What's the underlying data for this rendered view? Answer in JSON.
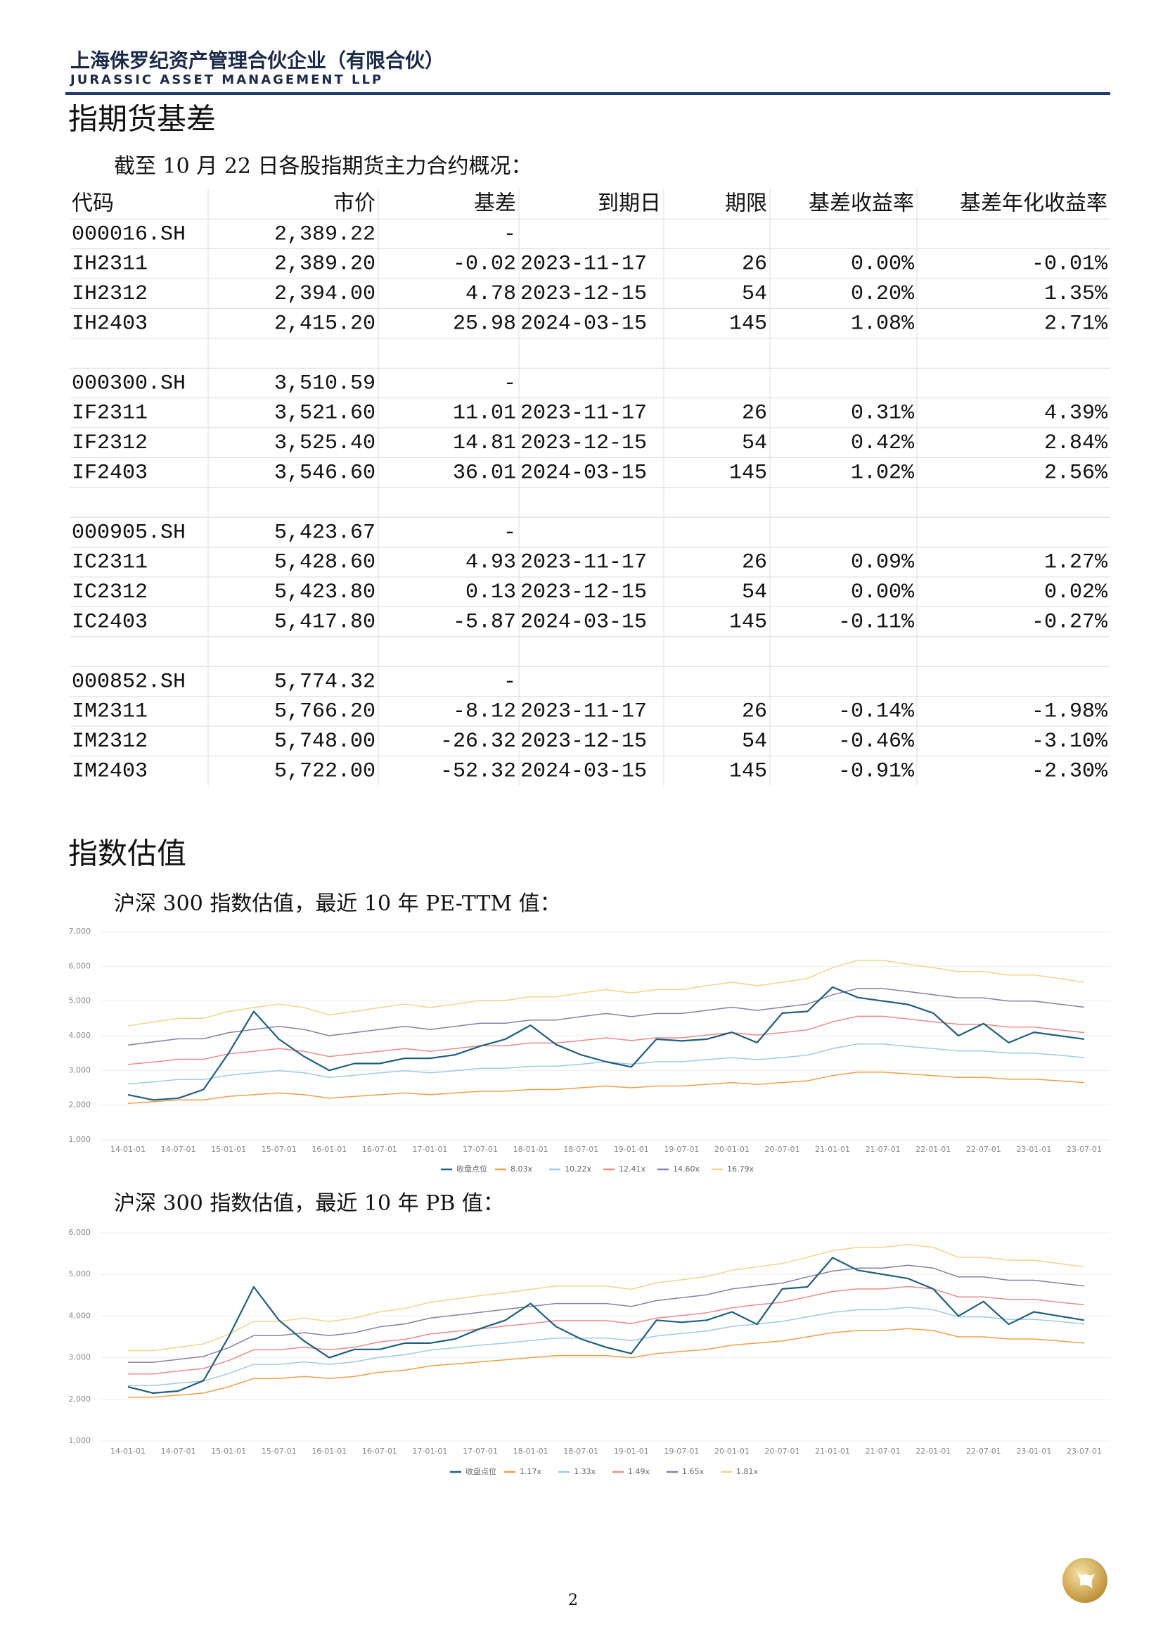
{
  "header": {
    "title_cn": "上海侏罗纪资产管理合伙企业（有限合伙）",
    "title_en": "JURASSIC ASSET MANAGEMENT LLP"
  },
  "section1": {
    "heading": "指期货基差",
    "intro": "截至 10 月 22 日各股指期货主力合约概况："
  },
  "table": {
    "columns": [
      "代码",
      "市价",
      "基差",
      "到期日",
      "期限",
      "基差收益率",
      "基差年化收益率"
    ],
    "rows": [
      [
        "000016.SH",
        "2,389.22",
        "-"
      ],
      [
        "IH2311",
        "2,389.20",
        "-0.02",
        "2023-11-17",
        "26",
        "0.00%",
        "-0.01%"
      ],
      [
        "IH2312",
        "2,394.00",
        "4.78",
        "2023-12-15",
        "54",
        "0.20%",
        "1.35%"
      ],
      [
        "IH2403",
        "2,415.20",
        "25.98",
        "2024-03-15",
        "145",
        "1.08%",
        "2.71%"
      ],
      [],
      [
        "000300.SH",
        "3,510.59",
        "-"
      ],
      [
        "IF2311",
        "3,521.60",
        "11.01",
        "2023-11-17",
        "26",
        "0.31%",
        "4.39%"
      ],
      [
        "IF2312",
        "3,525.40",
        "14.81",
        "2023-12-15",
        "54",
        "0.42%",
        "2.84%"
      ],
      [
        "IF2403",
        "3,546.60",
        "36.01",
        "2024-03-15",
        "145",
        "1.02%",
        "2.56%"
      ],
      [],
      [
        "000905.SH",
        "5,423.67",
        "-"
      ],
      [
        "IC2311",
        "5,428.60",
        "4.93",
        "2023-11-17",
        "26",
        "0.09%",
        "1.27%"
      ],
      [
        "IC2312",
        "5,423.80",
        "0.13",
        "2023-12-15",
        "54",
        "0.00%",
        "0.02%"
      ],
      [
        "IC2403",
        "5,417.80",
        "-5.87",
        "2024-03-15",
        "145",
        "-0.11%",
        "-0.27%"
      ],
      [],
      [
        "000852.SH",
        "5,774.32",
        "-"
      ],
      [
        "IM2311",
        "5,766.20",
        "-8.12",
        "2023-11-17",
        "26",
        "-0.14%",
        "-1.98%"
      ],
      [
        "IM2312",
        "5,748.00",
        "-26.32",
        "2023-12-15",
        "54",
        "-0.46%",
        "-3.10%"
      ],
      [
        "IM2403",
        "5,722.00",
        "-52.32",
        "2024-03-15",
        "145",
        "-0.91%",
        "-2.30%"
      ]
    ]
  },
  "section2": {
    "heading": "指数估值",
    "captions": [
      "沪深 300 指数估值，最近 10 年 PE-TTM 值：",
      "沪深 300 指数估值，最近 10 年 PB 值："
    ]
  },
  "chart_data": [
    {
      "type": "line",
      "categories": [
        "14-01-01",
        null,
        "14-07-01",
        null,
        "15-01-01",
        null,
        "15-07-01",
        null,
        "16-01-01",
        null,
        "16-07-01",
        null,
        "17-01-01",
        null,
        "17-07-01",
        null,
        "18-01-01",
        null,
        "18-07-01",
        null,
        "19-01-01",
        null,
        "19-07-01",
        null,
        "20-01-01",
        null,
        "20-07-01",
        null,
        "21-01-01",
        null,
        "21-07-01",
        null,
        "22-01-01",
        null,
        "22-07-01",
        null,
        "23-01-01",
        null,
        "23-07-01"
      ],
      "ylim": [
        1000,
        7000
      ],
      "yticks": [
        {
          "value": 1000,
          "label": "1,000"
        },
        {
          "value": 2000,
          "label": "2,000"
        },
        {
          "value": 3000,
          "label": "3,000"
        },
        {
          "value": 4000,
          "label": "4,000"
        },
        {
          "value": 5000,
          "label": "5,000"
        },
        {
          "value": 6000,
          "label": "6,000"
        },
        {
          "value": 7000,
          "label": "7,000"
        }
      ],
      "grid": true,
      "legend": "bottom",
      "series": [
        {
          "name": "收盘点位",
          "color": "#1f5f7f",
          "values": [
            2300,
            2150,
            2200,
            2450,
            3500,
            4700,
            3900,
            3400,
            3000,
            3200,
            3200,
            3350,
            3350,
            3450,
            3700,
            3900,
            4300,
            3750,
            3450,
            3250,
            3100,
            3900,
            3850,
            3900,
            4100,
            3800,
            4650,
            4700,
            5400,
            5100,
            5000,
            4900,
            4650,
            4000,
            4350,
            3800,
            4100,
            4000,
            3900
          ]
        },
        {
          "name": "8.03x",
          "color": "#f0a04b",
          "values": [
            2050,
            2100,
            2150,
            2150,
            2250,
            2300,
            2350,
            2300,
            2200,
            2250,
            2300,
            2350,
            2300,
            2350,
            2400,
            2400,
            2450,
            2450,
            2500,
            2550,
            2500,
            2550,
            2550,
            2600,
            2650,
            2600,
            2650,
            2700,
            2850,
            2950,
            2950,
            2900,
            2850,
            2800,
            2800,
            2750,
            2750,
            2700,
            2650
          ]
        },
        {
          "name": "10.22x",
          "color": "#9fcbe3",
          "values": [
            2610,
            2670,
            2740,
            2740,
            2860,
            2930,
            2990,
            2930,
            2800,
            2860,
            2930,
            2990,
            2930,
            2990,
            3060,
            3060,
            3120,
            3120,
            3180,
            3250,
            3180,
            3250,
            3250,
            3310,
            3370,
            3310,
            3370,
            3440,
            3630,
            3760,
            3760,
            3690,
            3630,
            3560,
            3560,
            3500,
            3500,
            3440,
            3370
          ]
        },
        {
          "name": "12.41x",
          "color": "#f08a8a",
          "values": [
            3170,
            3240,
            3320,
            3320,
            3480,
            3550,
            3630,
            3550,
            3400,
            3480,
            3550,
            3630,
            3550,
            3630,
            3710,
            3710,
            3790,
            3790,
            3860,
            3940,
            3860,
            3940,
            3940,
            4020,
            4090,
            4020,
            4090,
            4170,
            4400,
            4560,
            4560,
            4480,
            4400,
            4330,
            4330,
            4250,
            4250,
            4170,
            4090
          ]
        },
        {
          "name": "14.60x",
          "color": "#8a7fa8",
          "values": [
            3730,
            3820,
            3910,
            3910,
            4090,
            4180,
            4270,
            4180,
            4000,
            4090,
            4180,
            4270,
            4180,
            4270,
            4360,
            4360,
            4450,
            4450,
            4550,
            4640,
            4550,
            4640,
            4640,
            4730,
            4820,
            4730,
            4820,
            4910,
            5180,
            5360,
            5360,
            5270,
            5180,
            5090,
            5090,
            5000,
            5000,
            4910,
            4820
          ]
        },
        {
          "name": "16.79x",
          "color": "#f3d58a",
          "values": [
            4290,
            4390,
            4500,
            4500,
            4700,
            4810,
            4910,
            4810,
            4600,
            4700,
            4810,
            4910,
            4810,
            4910,
            5020,
            5020,
            5120,
            5120,
            5230,
            5330,
            5230,
            5330,
            5330,
            5440,
            5540,
            5440,
            5540,
            5650,
            5960,
            6170,
            6170,
            6060,
            5960,
            5850,
            5850,
            5750,
            5750,
            5650,
            5540
          ]
        }
      ]
    },
    {
      "type": "line",
      "categories": [
        "14-01-01",
        null,
        "14-07-01",
        null,
        "15-01-01",
        null,
        "15-07-01",
        null,
        "16-01-01",
        null,
        "16-07-01",
        null,
        "17-01-01",
        null,
        "17-07-01",
        null,
        "18-01-01",
        null,
        "18-07-01",
        null,
        "19-01-01",
        null,
        "19-07-01",
        null,
        "20-01-01",
        null,
        "20-07-01",
        null,
        "21-01-01",
        null,
        "21-07-01",
        null,
        "22-01-01",
        null,
        "22-07-01",
        null,
        "23-01-01",
        null,
        "23-07-01"
      ],
      "ylim": [
        1000,
        6000
      ],
      "yticks": [
        {
          "value": 1000,
          "label": "1,000"
        },
        {
          "value": 2000,
          "label": "2,000"
        },
        {
          "value": 3000,
          "label": "3,000"
        },
        {
          "value": 4000,
          "label": "4,000"
        },
        {
          "value": 5000,
          "label": "5,000"
        },
        {
          "value": 6000,
          "label": "6,000"
        }
      ],
      "grid": true,
      "legend": "bottom",
      "series": [
        {
          "name": "收盘点位",
          "color": "#1f5f7f",
          "values": [
            2300,
            2150,
            2200,
            2450,
            3500,
            4700,
            3900,
            3400,
            3000,
            3200,
            3200,
            3350,
            3350,
            3450,
            3700,
            3900,
            4300,
            3750,
            3450,
            3250,
            3100,
            3900,
            3850,
            3900,
            4100,
            3800,
            4650,
            4700,
            5400,
            5100,
            5000,
            4900,
            4650,
            4000,
            4350,
            3800,
            4100,
            4000,
            3900
          ]
        },
        {
          "name": "1.17x",
          "color": "#f0a04b",
          "values": [
            2050,
            2050,
            2100,
            2150,
            2300,
            2500,
            2500,
            2550,
            2500,
            2550,
            2650,
            2700,
            2800,
            2850,
            2900,
            2950,
            3000,
            3050,
            3050,
            3050,
            3000,
            3100,
            3150,
            3200,
            3300,
            3350,
            3400,
            3500,
            3600,
            3650,
            3650,
            3700,
            3650,
            3500,
            3500,
            3450,
            3450,
            3400,
            3350
          ]
        },
        {
          "name": "1.33x",
          "color": "#9fcbe3",
          "values": [
            2330,
            2330,
            2390,
            2440,
            2620,
            2840,
            2840,
            2900,
            2840,
            2900,
            3010,
            3070,
            3180,
            3240,
            3300,
            3350,
            3410,
            3470,
            3470,
            3470,
            3410,
            3520,
            3580,
            3640,
            3750,
            3810,
            3870,
            3980,
            4090,
            4150,
            4150,
            4210,
            4150,
            3980,
            3980,
            3920,
            3920,
            3870,
            3810
          ]
        },
        {
          "name": "1.49x",
          "color": "#f08a8a",
          "values": [
            2610,
            2610,
            2680,
            2740,
            2930,
            3190,
            3190,
            3250,
            3190,
            3250,
            3380,
            3440,
            3570,
            3630,
            3690,
            3760,
            3820,
            3890,
            3890,
            3890,
            3820,
            3950,
            4010,
            4080,
            4200,
            4270,
            4330,
            4460,
            4590,
            4650,
            4650,
            4710,
            4650,
            4460,
            4460,
            4400,
            4400,
            4330,
            4270
          ]
        },
        {
          "name": "1.65x",
          "color": "#8a7fa8",
          "values": [
            2890,
            2890,
            2960,
            3030,
            3240,
            3530,
            3530,
            3600,
            3530,
            3600,
            3740,
            3810,
            3950,
            4020,
            4090,
            4160,
            4230,
            4300,
            4300,
            4300,
            4230,
            4370,
            4440,
            4510,
            4650,
            4720,
            4790,
            4940,
            5080,
            5150,
            5150,
            5220,
            5150,
            4940,
            4940,
            4860,
            4860,
            4790,
            4720
          ]
        },
        {
          "name": "1.81x",
          "color": "#f3d58a",
          "values": [
            3170,
            3170,
            3250,
            3330,
            3560,
            3870,
            3870,
            3950,
            3870,
            3950,
            4100,
            4180,
            4330,
            4410,
            4490,
            4560,
            4640,
            4720,
            4720,
            4720,
            4640,
            4800,
            4870,
            4950,
            5100,
            5180,
            5260,
            5410,
            5570,
            5650,
            5650,
            5720,
            5650,
            5410,
            5410,
            5340,
            5340,
            5260,
            5180
          ]
        }
      ]
    }
  ],
  "page_number": "2"
}
